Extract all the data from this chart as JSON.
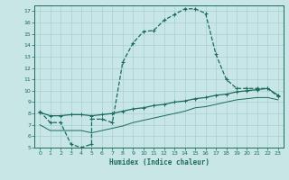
{
  "xlabel": "Humidex (Indice chaleur)",
  "xlim": [
    -0.5,
    23.5
  ],
  "ylim": [
    5,
    17.5
  ],
  "xticks": [
    0,
    1,
    2,
    3,
    4,
    5,
    6,
    7,
    8,
    9,
    10,
    11,
    12,
    13,
    14,
    15,
    16,
    17,
    18,
    19,
    20,
    21,
    22,
    23
  ],
  "yticks": [
    5,
    6,
    7,
    8,
    9,
    10,
    11,
    12,
    13,
    14,
    15,
    16,
    17
  ],
  "background_color": "#c8e6e6",
  "line_color": "#1a6b5a",
  "curve1_x": [
    0,
    1,
    2,
    3,
    4,
    5,
    5,
    6,
    7,
    8,
    9,
    10,
    11,
    12,
    13,
    14,
    15,
    16,
    17,
    18,
    19,
    20,
    21,
    22,
    23
  ],
  "curve1_y": [
    8.2,
    7.2,
    7.2,
    5.3,
    5.0,
    5.3,
    7.5,
    7.5,
    7.2,
    12.5,
    14.2,
    15.2,
    15.3,
    16.2,
    16.7,
    17.2,
    17.2,
    16.8,
    13.2,
    11.0,
    10.2,
    10.2,
    10.2,
    10.2,
    9.5
  ],
  "curve2_x": [
    0,
    1,
    2,
    3,
    4,
    5,
    6,
    7,
    8,
    9,
    10,
    11,
    12,
    13,
    14,
    15,
    16,
    17,
    18,
    19,
    20,
    21,
    22,
    23
  ],
  "curve2_y": [
    8.1,
    7.8,
    7.8,
    7.9,
    7.9,
    7.8,
    7.9,
    8.0,
    8.2,
    8.4,
    8.5,
    8.7,
    8.8,
    9.0,
    9.1,
    9.3,
    9.4,
    9.6,
    9.7,
    9.9,
    10.0,
    10.1,
    10.2,
    9.6
  ],
  "curve3_x": [
    0,
    1,
    2,
    3,
    4,
    5,
    6,
    7,
    8,
    9,
    10,
    11,
    12,
    13,
    14,
    15,
    16,
    17,
    18,
    19,
    20,
    21,
    22,
    23
  ],
  "curve3_y": [
    7.0,
    6.5,
    6.5,
    6.5,
    6.5,
    6.3,
    6.5,
    6.7,
    6.9,
    7.2,
    7.4,
    7.6,
    7.8,
    8.0,
    8.2,
    8.5,
    8.6,
    8.8,
    9.0,
    9.2,
    9.3,
    9.4,
    9.4,
    9.2
  ]
}
